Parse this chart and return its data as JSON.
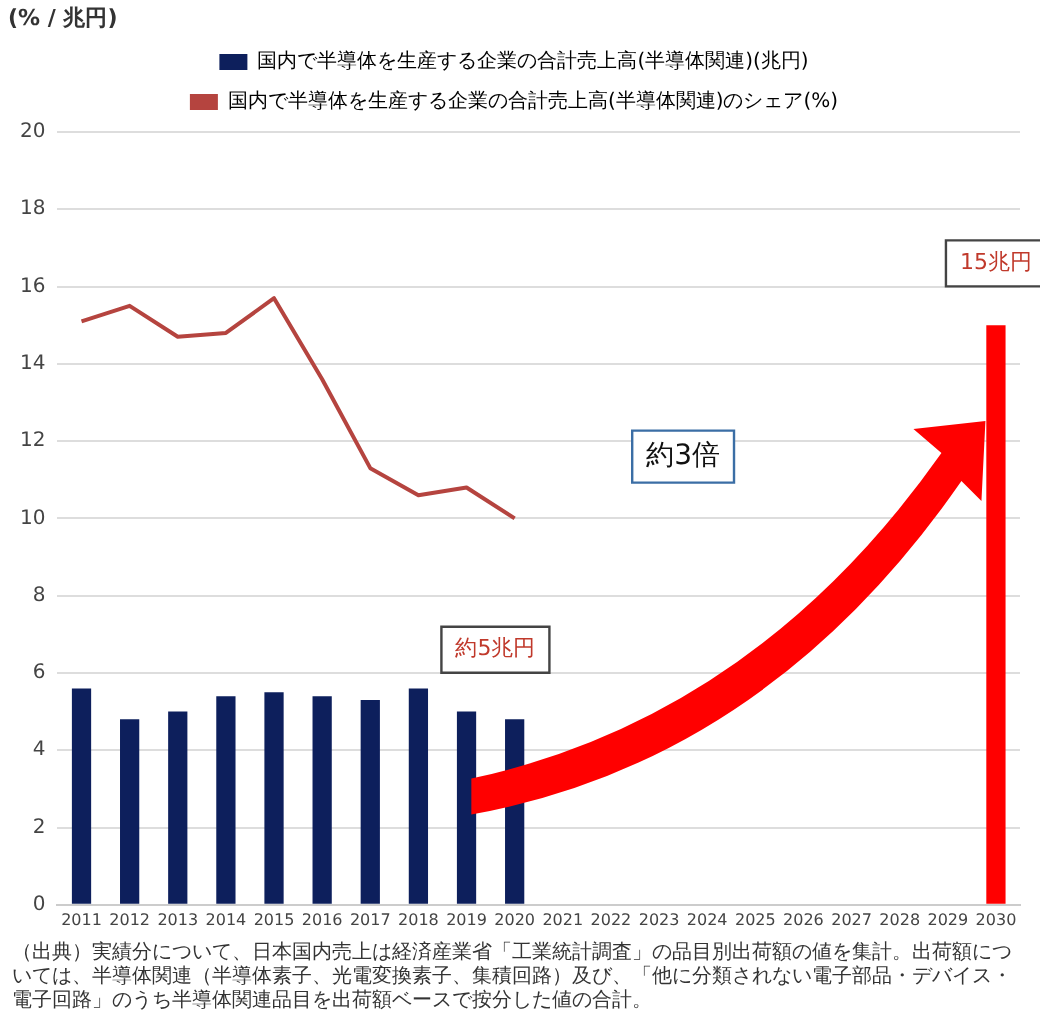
{
  "chart_data": {
    "type": "bar",
    "ylabel": "(% / 兆円)",
    "categories": [
      "2011",
      "2012",
      "2013",
      "2014",
      "2015",
      "2016",
      "2017",
      "2018",
      "2019",
      "2020",
      "2021",
      "2022",
      "2023",
      "2024",
      "2025",
      "2026",
      "2027",
      "2028",
      "2029",
      "2030"
    ],
    "series": [
      {
        "name": "国内で半導体を生産する企業の合計売上高(半導体関連)(兆円)",
        "color": "#0d1f5c",
        "colors": [
          "#0d1f5c",
          "#0d1f5c",
          "#0d1f5c",
          "#0d1f5c",
          "#0d1f5c",
          "#0d1f5c",
          "#0d1f5c",
          "#0d1f5c",
          "#0d1f5c",
          "#0d1f5c",
          "#0d1f5c",
          "#0d1f5c",
          "#0d1f5c",
          "#0d1f5c",
          "#0d1f5c",
          "#0d1f5c",
          "#0d1f5c",
          "#0d1f5c",
          "#0d1f5c",
          "#ff0000"
        ],
        "values": [
          5.6,
          4.8,
          5.0,
          5.4,
          5.5,
          5.4,
          5.3,
          5.6,
          5.0,
          4.8,
          null,
          null,
          null,
          null,
          null,
          null,
          null,
          null,
          null,
          15
        ]
      },
      {
        "name": "国内で半導体を生産する企業の合計売上高(半導体関連)のシェア(%)",
        "type": "line",
        "color": "#b5443f",
        "values": [
          15.1,
          15.5,
          14.7,
          14.8,
          15.7,
          13.6,
          11.3,
          10.6,
          10.8,
          10.0,
          null,
          null,
          null,
          null,
          null,
          null,
          null,
          null,
          null,
          null
        ]
      }
    ],
    "ylim": [
      0,
      20
    ],
    "yticks": [
      0,
      2,
      4,
      6,
      8,
      10,
      12,
      14,
      16,
      18,
      20
    ],
    "grid": "y",
    "legend": "top",
    "marker": "none",
    "line_style": "solid",
    "annotations": [
      "約5兆円",
      "15兆円",
      "約3倍",
      "（出典）実績分について、日本国内売上は経済産業省「工業統計調査」の品目別出荷額の値を集計。出荷額については、半導体関連（半導体素子、光電変換素子、集積回路）及び、「他に分類されない電子部品・デバイス・電子回路」のうち半導体関連品目を出荷額ベースで按分した値の合計。"
    ]
  }
}
